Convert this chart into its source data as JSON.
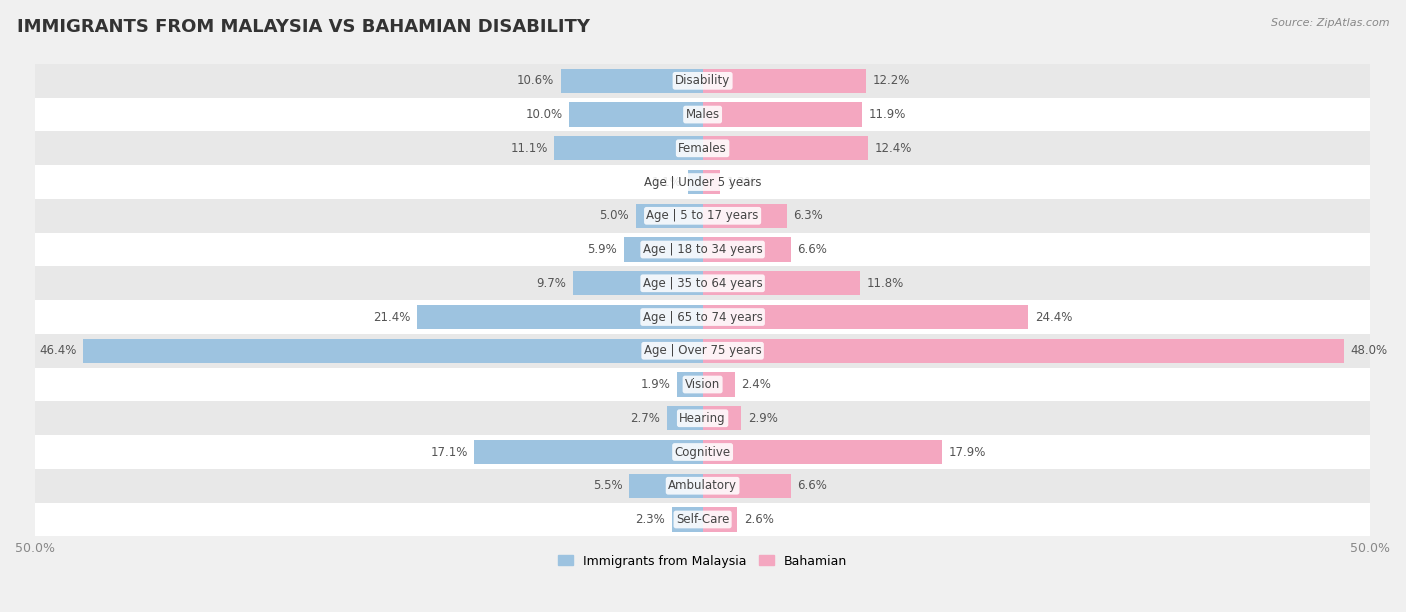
{
  "title": "IMMIGRANTS FROM MALAYSIA VS BAHAMIAN DISABILITY",
  "source": "Source: ZipAtlas.com",
  "categories": [
    "Disability",
    "Males",
    "Females",
    "Age | Under 5 years",
    "Age | 5 to 17 years",
    "Age | 18 to 34 years",
    "Age | 35 to 64 years",
    "Age | 65 to 74 years",
    "Age | Over 75 years",
    "Vision",
    "Hearing",
    "Cognitive",
    "Ambulatory",
    "Self-Care"
  ],
  "malaysia_values": [
    10.6,
    10.0,
    11.1,
    1.1,
    5.0,
    5.9,
    9.7,
    21.4,
    46.4,
    1.9,
    2.7,
    17.1,
    5.5,
    2.3
  ],
  "bahamian_values": [
    12.2,
    11.9,
    12.4,
    1.3,
    6.3,
    6.6,
    11.8,
    24.4,
    48.0,
    2.4,
    2.9,
    17.9,
    6.6,
    2.6
  ],
  "malaysia_color": "#9dc3e0",
  "bahamian_color": "#f4a7c0",
  "malaysia_color_dark": "#6baed6",
  "bahamian_color_dark": "#e86090",
  "axis_limit": 50.0,
  "row_bg_light": "#ffffff",
  "row_bg_dark": "#e8e8e8",
  "legend_malaysia": "Immigrants from Malaysia",
  "legend_bahamian": "Bahamian",
  "title_fontsize": 13,
  "label_fontsize": 8.5,
  "value_fontsize": 8.5
}
